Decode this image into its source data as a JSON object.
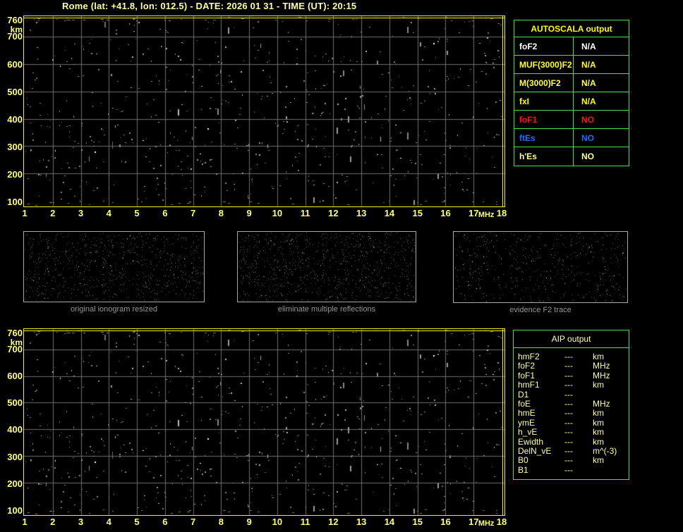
{
  "title": "Rome (lat: +41.8, lon: 012.5) - DATE: 2026 01 31 - TIME (UT): 20:15",
  "ionogram_axes": {
    "y_unit": "km",
    "x_unit": "MHz",
    "y_ticks": [
      "760",
      "700",
      "600",
      "500",
      "400",
      "300",
      "200",
      "100"
    ],
    "x_ticks": [
      "1",
      "2",
      "3",
      "4",
      "5",
      "6",
      "7",
      "8",
      "9",
      "10",
      "11",
      "12",
      "13",
      "14",
      "15",
      "16",
      "17",
      "18"
    ],
    "y_range": [
      100,
      760
    ],
    "x_range": [
      1,
      18
    ]
  },
  "autoscala_table": {
    "title": "AUTOSCALA output",
    "rows": [
      {
        "label": "foF2",
        "value": "N/A",
        "color": "#ffffff"
      },
      {
        "label": "MUF(3000)F2",
        "value": "N/A",
        "color": "#ffff2e"
      },
      {
        "label": "M(3000)F2",
        "value": "N/A",
        "color": "#ffff55"
      },
      {
        "label": "fxI",
        "value": "N/A",
        "color": "#ffff00"
      },
      {
        "label": "foF1",
        "value": "NO",
        "color": "#ff1515"
      },
      {
        "label": "ftEs",
        "value": "NO",
        "color": "#1e6eff"
      },
      {
        "label": "h'Es",
        "value": "NO",
        "color": "#ffff99"
      }
    ]
  },
  "thumbnails": [
    {
      "caption": "original ionogram resized"
    },
    {
      "caption": "eliminate multiple reflections"
    },
    {
      "caption": "evidence F2 trace"
    }
  ],
  "aip_table": {
    "title": "AIP output",
    "rows": [
      {
        "label": "hmF2",
        "value": "---",
        "unit": "km"
      },
      {
        "label": "foF2",
        "value": "---",
        "unit": "MHz"
      },
      {
        "label": "foF1",
        "value": "---",
        "unit": "MHz"
      },
      {
        "label": "hmF1",
        "value": "---",
        "unit": "km"
      },
      {
        "label": "D1",
        "value": "---",
        "unit": ""
      },
      {
        "label": "foE",
        "value": "---",
        "unit": "MHz"
      },
      {
        "label": "hmE",
        "value": "---",
        "unit": "km"
      },
      {
        "label": "ymE",
        "value": "---",
        "unit": "km"
      },
      {
        "label": "h_vE",
        "value": "---",
        "unit": "km"
      },
      {
        "label": "Ewidth",
        "value": "---",
        "unit": "km"
      },
      {
        "label": "DelN_vE",
        "value": "---",
        "unit": "m^(-3)"
      },
      {
        "label": "B0",
        "value": "---",
        "unit": "km"
      },
      {
        "label": "B1",
        "value": "---",
        "unit": ""
      }
    ]
  },
  "colors": {
    "background": "#000000",
    "plot_border_yellow": "#f0f022",
    "axis_label_yellow": "#ffff82",
    "title_yellow": "#ffffa6",
    "table_border_green": "#4ce04c",
    "autoscala_header_yellow": "#ffff00",
    "aip_text_yellow": "#ffffa8",
    "grid_gray": "#6e6e6e",
    "caption_gray": "#989898",
    "status_red": "#ff1515",
    "status_blue": "#1e6eff"
  }
}
